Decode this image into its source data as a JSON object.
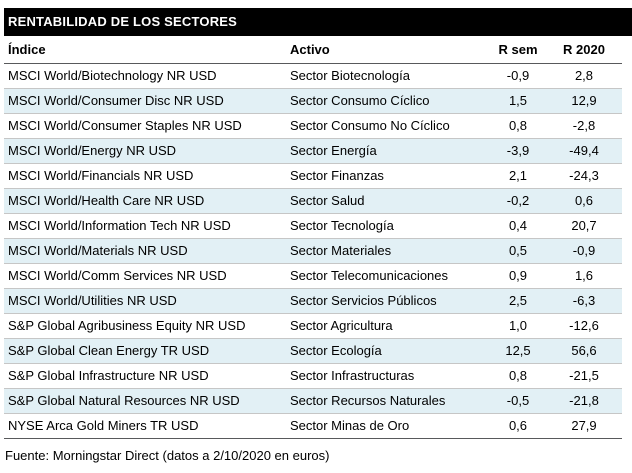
{
  "title": "RENTABILIDAD DE LOS SECTORES",
  "footer": "Fuente: Morningstar Direct (datos a 2/10/2020 en euros)",
  "colors": {
    "title_bg": "#000000",
    "title_text": "#ffffff",
    "row_alt_bg": "#e2f0f5",
    "row_divider": "#c6c6c6",
    "strong_line": "#58595b",
    "text": "#000000"
  },
  "chart_data": {
    "type": "table",
    "title": "RENTABILIDAD DE LOS SECTORES",
    "columns": [
      "Índice",
      "Activo",
      "R sem",
      "R 2020"
    ],
    "rows": [
      [
        "MSCI World/Biotechnology NR USD",
        "Sector Biotecnología",
        "-0,9",
        "2,8"
      ],
      [
        "MSCI World/Consumer Disc NR USD",
        "Sector Consumo Cíclico",
        "1,5",
        "12,9"
      ],
      [
        "MSCI World/Consumer Staples NR USD",
        "Sector Consumo No Cíclico",
        "0,8",
        "-2,8"
      ],
      [
        "MSCI World/Energy NR USD",
        "Sector Energía",
        "-3,9",
        "-49,4"
      ],
      [
        "MSCI World/Financials NR USD",
        "Sector Finanzas",
        "2,1",
        "-24,3"
      ],
      [
        "MSCI World/Health Care NR USD",
        "Sector Salud",
        "-0,2",
        "0,6"
      ],
      [
        "MSCI World/Information Tech NR USD",
        "Sector Tecnología",
        "0,4",
        "20,7"
      ],
      [
        "MSCI World/Materials NR USD",
        "Sector Materiales",
        "0,5",
        "-0,9"
      ],
      [
        "MSCI World/Comm Services NR USD",
        "Sector Telecomunicaciones",
        "0,9",
        "1,6"
      ],
      [
        "MSCI World/Utilities NR USD",
        "Sector Servicios Públicos",
        "2,5",
        "-6,3"
      ],
      [
        "S&P Global Agribusiness Equity NR USD",
        "Sector Agricultura",
        "1,0",
        "-12,6"
      ],
      [
        "S&P Global Clean Energy TR USD",
        "Sector Ecología",
        "12,5",
        "56,6"
      ],
      [
        "S&P Global Infrastructure NR USD",
        "Sector Infrastructuras",
        "0,8",
        "-21,5"
      ],
      [
        "S&P Global Natural Resources NR USD",
        "Sector Recursos Naturales",
        "-0,5",
        "-21,8"
      ],
      [
        "NYSE Arca Gold Miners TR USD",
        "Sector Minas de Oro",
        "0,6",
        "27,9"
      ]
    ],
    "source": "Fuente: Morningstar Direct (datos a 2/10/2020 en euros)",
    "layout": {
      "alternating_rows": true,
      "numeric_alignment": "center",
      "grid": "horizontal-lines"
    }
  }
}
